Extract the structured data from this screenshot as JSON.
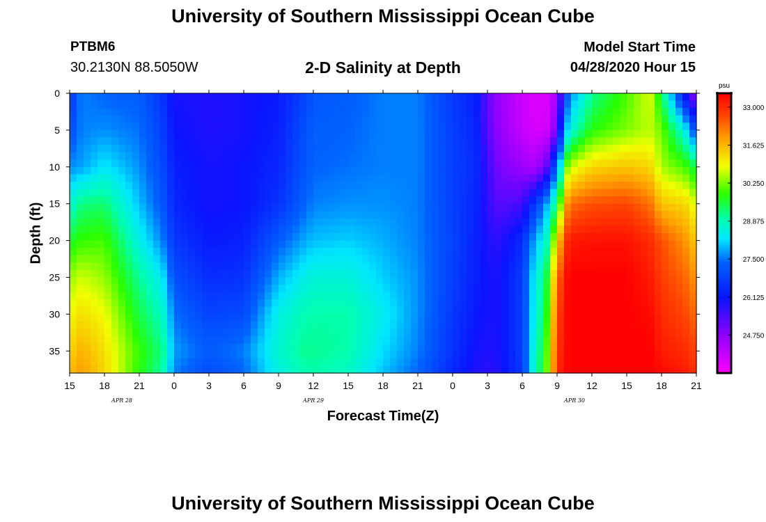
{
  "header": {
    "title": "University of Southern Mississippi Ocean Cube",
    "station": "PTBM6",
    "coordinates": "30.2130N 88.5050W",
    "plot_title": "2-D Salinity at Depth",
    "start_label": "Model Start Time",
    "start_value": "04/28/2020 Hour 15"
  },
  "footer": {
    "title": "University of Southern Mississippi Ocean Cube"
  },
  "chart_data": {
    "type": "heatmap",
    "title": "2-D Salinity at Depth",
    "xlabel": "Forecast Time(Z)",
    "ylabel": "Depth (ft)",
    "x_unit": "hours since 04/28/2020 15Z",
    "xlim": [
      0,
      54
    ],
    "ylim": [
      38,
      0
    ],
    "x_ticks": [
      0,
      3,
      6,
      9,
      12,
      15,
      18,
      21,
      24,
      27,
      30,
      33,
      36,
      39,
      42,
      45,
      48,
      51,
      54
    ],
    "x_tick_labels": [
      "15",
      "18",
      "21",
      "0",
      "3",
      "6",
      "9",
      "12",
      "15",
      "18",
      "21",
      "0",
      "3",
      "6",
      "9",
      "12",
      "15",
      "18",
      "21"
    ],
    "y_ticks": [
      0,
      5,
      10,
      15,
      20,
      25,
      30,
      35
    ],
    "y_tick_labels": [
      "0",
      "5",
      "10",
      "15",
      "20",
      "25",
      "30",
      "35"
    ],
    "date_labels": [
      {
        "text": "APR  28",
        "x": 4.5
      },
      {
        "text": "APR  29",
        "x": 21
      },
      {
        "text": "APR  30",
        "x": 43.5
      }
    ],
    "colorbar": {
      "unit": "psu",
      "range": [
        23.375,
        33.5
      ],
      "tick_values": [
        33.0,
        31.625,
        30.25,
        28.875,
        27.5,
        26.125,
        24.75
      ],
      "tick_labels": [
        "33.000",
        "31.625",
        "30.250",
        "28.875",
        "27.500",
        "26.125",
        "24.750"
      ]
    },
    "grid": {
      "depths": [
        0,
        5,
        10,
        15,
        20,
        25,
        30,
        35,
        38
      ],
      "times": [
        0,
        1,
        3,
        6,
        8,
        9,
        12,
        15,
        18,
        20,
        21,
        24,
        27,
        30,
        33,
        35,
        36,
        37,
        39,
        40,
        41,
        41.5,
        42,
        43,
        45,
        48,
        50,
        51,
        53,
        54
      ],
      "values": [
        [
          26.5,
          27.6,
          27.4,
          27.3,
          26.6,
          26.0,
          25.9,
          26.0,
          26.2,
          26.8,
          27.2,
          27.3,
          27.6,
          27.6,
          26.7,
          26.3,
          25.2,
          24.6,
          24.0,
          23.8,
          23.8,
          24.0,
          24.6,
          27.5,
          29.1,
          30.0,
          30.8,
          29.4,
          26.0,
          24.5
        ],
        [
          27.0,
          27.6,
          27.7,
          27.5,
          26.8,
          26.1,
          25.9,
          26.0,
          26.3,
          27.0,
          27.3,
          27.4,
          27.6,
          27.6,
          26.8,
          26.4,
          25.3,
          24.7,
          24.1,
          23.9,
          23.9,
          24.2,
          25.3,
          28.5,
          29.8,
          30.3,
          30.6,
          30.2,
          28.5,
          26.8
        ],
        [
          27.7,
          27.8,
          28.3,
          27.7,
          27.0,
          26.3,
          26.0,
          26.1,
          26.4,
          27.1,
          27.4,
          27.5,
          27.6,
          27.6,
          26.8,
          26.5,
          25.6,
          25.0,
          24.6,
          24.4,
          25.0,
          26.3,
          27.5,
          30.6,
          31.3,
          31.5,
          31.3,
          30.5,
          30.0,
          29.4
        ],
        [
          28.6,
          29.2,
          29.3,
          28.0,
          27.2,
          26.4,
          26.0,
          26.1,
          26.6,
          27.3,
          27.6,
          27.7,
          27.7,
          27.6,
          26.8,
          26.4,
          25.7,
          25.3,
          25.5,
          26.6,
          27.7,
          28.5,
          29.3,
          32.3,
          32.6,
          32.7,
          32.3,
          31.5,
          31.3,
          30.7
        ],
        [
          29.6,
          29.9,
          30.0,
          28.5,
          27.6,
          26.7,
          26.2,
          26.3,
          27.3,
          27.8,
          28.0,
          28.1,
          27.9,
          27.6,
          26.9,
          26.3,
          25.9,
          25.8,
          26.5,
          27.8,
          28.6,
          29.7,
          31.3,
          33.2,
          33.3,
          33.3,
          33.0,
          32.6,
          32.0,
          31.4
        ],
        [
          30.4,
          30.7,
          30.4,
          29.1,
          28.3,
          27.1,
          26.5,
          26.6,
          27.9,
          28.4,
          28.6,
          28.6,
          28.1,
          27.7,
          26.8,
          26.3,
          26.0,
          26.0,
          26.8,
          28.3,
          29.3,
          30.6,
          32.3,
          33.5,
          33.5,
          33.5,
          33.2,
          32.8,
          32.4,
          31.9
        ],
        [
          30.9,
          31.2,
          30.9,
          29.5,
          28.8,
          27.5,
          26.9,
          27.0,
          28.5,
          28.9,
          29.0,
          29.0,
          28.4,
          27.7,
          26.7,
          26.2,
          26.0,
          26.0,
          26.8,
          28.4,
          29.5,
          31.0,
          32.7,
          33.5,
          33.5,
          33.5,
          33.4,
          33.0,
          32.7,
          32.3
        ],
        [
          31.3,
          31.7,
          31.2,
          29.9,
          29.2,
          27.8,
          27.3,
          27.6,
          28.7,
          29.1,
          29.1,
          29.0,
          28.2,
          27.6,
          26.6,
          26.0,
          25.9,
          26.0,
          26.8,
          28.6,
          29.8,
          31.3,
          32.9,
          33.5,
          33.5,
          33.5,
          33.5,
          33.2,
          33.0,
          32.7
        ],
        [
          31.6,
          31.9,
          31.3,
          29.8,
          29.0,
          27.6,
          27.0,
          27.4,
          28.5,
          28.9,
          29.0,
          28.8,
          28.0,
          27.4,
          26.4,
          25.9,
          25.8,
          25.9,
          26.7,
          28.7,
          29.9,
          31.4,
          33.0,
          33.5,
          33.5,
          33.5,
          33.5,
          33.4,
          33.2,
          32.9
        ]
      ]
    }
  }
}
